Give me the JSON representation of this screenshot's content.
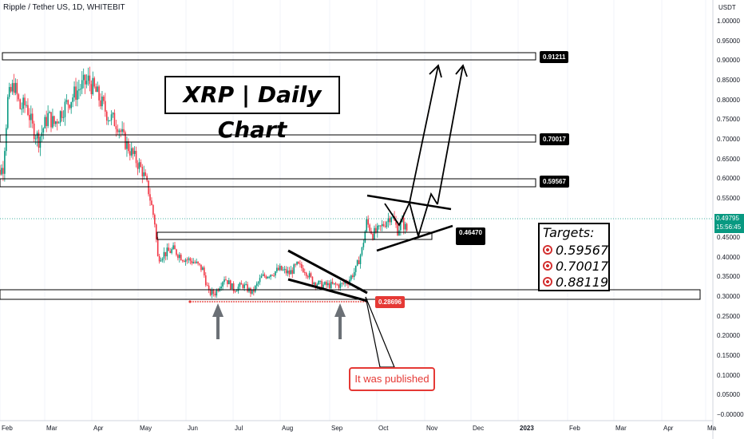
{
  "header": {
    "symbol_line": "Ripple / Tether US, 1D, WHITEBIT"
  },
  "y_axis": {
    "unit": "USDT",
    "ticks": [
      "1.00000",
      "0.95000",
      "0.90000",
      "0.85000",
      "0.80000",
      "0.75000",
      "0.70000",
      "0.65000",
      "0.60000",
      "0.55000",
      "0.50000",
      "0.45000",
      "0.40000",
      "0.35000",
      "0.30000",
      "0.25000",
      "0.20000",
      "0.15000",
      "0.10000",
      "0.05000",
      "−0.00000"
    ]
  },
  "x_axis": {
    "ticks": [
      "Feb",
      "Mar",
      "Apr",
      "May",
      "Jun",
      "Jul",
      "Aug",
      "Sep",
      "Oct",
      "Nov",
      "Dec",
      "2023",
      "Feb",
      "Mar",
      "Apr",
      "Ma"
    ]
  },
  "current_price": {
    "value": "0.49795",
    "countdown": "15:56:45"
  },
  "title_box": "XRP | Daily Chart",
  "targets": {
    "heading": "Targets:",
    "items": [
      "0.59567",
      "0.70017",
      "0.88119"
    ]
  },
  "callout": "It was published",
  "colors": {
    "up": "#089981",
    "down": "#f23645",
    "accent_red": "#e53935"
  },
  "chart_data": {
    "type": "candlestick",
    "ylim": [
      0,
      1.0
    ],
    "levels": [
      {
        "label": "0.91211",
        "value": 0.9121
      },
      {
        "label": "0.70017",
        "value": 0.7002
      },
      {
        "label": "0.59567",
        "value": 0.5957
      },
      {
        "label": "0.46470",
        "value": 0.4647
      },
      {
        "label": "0.28696",
        "value": 0.287
      }
    ],
    "close_path": [
      [
        "2022-01-25",
        0.6
      ],
      [
        "2022-02-01",
        0.63
      ],
      [
        "2022-02-04",
        0.8
      ],
      [
        "2022-02-08",
        0.84
      ],
      [
        "2022-02-12",
        0.78
      ],
      [
        "2022-02-16",
        0.79
      ],
      [
        "2022-02-20",
        0.73
      ],
      [
        "2022-02-24",
        0.7
      ],
      [
        "2022-03-02",
        0.76
      ],
      [
        "2022-03-06",
        0.74
      ],
      [
        "2022-03-12",
        0.78
      ],
      [
        "2022-03-16",
        0.8
      ],
      [
        "2022-03-22",
        0.83
      ],
      [
        "2022-03-28",
        0.85
      ],
      [
        "2022-04-02",
        0.82
      ],
      [
        "2022-04-06",
        0.79
      ],
      [
        "2022-04-10",
        0.76
      ],
      [
        "2022-04-16",
        0.74
      ],
      [
        "2022-04-20",
        0.7
      ],
      [
        "2022-04-26",
        0.66
      ],
      [
        "2022-05-02",
        0.62
      ],
      [
        "2022-05-06",
        0.57
      ],
      [
        "2022-05-10",
        0.49
      ],
      [
        "2022-05-12",
        0.4
      ],
      [
        "2022-05-16",
        0.41
      ],
      [
        "2022-05-22",
        0.42
      ],
      [
        "2022-05-28",
        0.4
      ],
      [
        "2022-06-04",
        0.39
      ],
      [
        "2022-06-10",
        0.37
      ],
      [
        "2022-06-14",
        0.31
      ],
      [
        "2022-06-18",
        0.31
      ],
      [
        "2022-06-24",
        0.35
      ],
      [
        "2022-06-30",
        0.32
      ],
      [
        "2022-07-06",
        0.33
      ],
      [
        "2022-07-12",
        0.31
      ],
      [
        "2022-07-18",
        0.35
      ],
      [
        "2022-07-24",
        0.36
      ],
      [
        "2022-07-30",
        0.37
      ],
      [
        "2022-08-05",
        0.36
      ],
      [
        "2022-08-10",
        0.38
      ],
      [
        "2022-08-15",
        0.37
      ],
      [
        "2022-08-20",
        0.34
      ],
      [
        "2022-08-26",
        0.33
      ],
      [
        "2022-09-01",
        0.33
      ],
      [
        "2022-09-07",
        0.33
      ],
      [
        "2022-09-12",
        0.34
      ],
      [
        "2022-09-17",
        0.37
      ],
      [
        "2022-09-21",
        0.42
      ],
      [
        "2022-09-24",
        0.49
      ],
      [
        "2022-09-28",
        0.46
      ],
      [
        "2022-10-02",
        0.47
      ],
      [
        "2022-10-06",
        0.49
      ],
      [
        "2022-10-10",
        0.51
      ],
      [
        "2022-10-14",
        0.47
      ],
      [
        "2022-10-17",
        0.49
      ],
      [
        "2022-10-20",
        0.47
      ]
    ]
  }
}
